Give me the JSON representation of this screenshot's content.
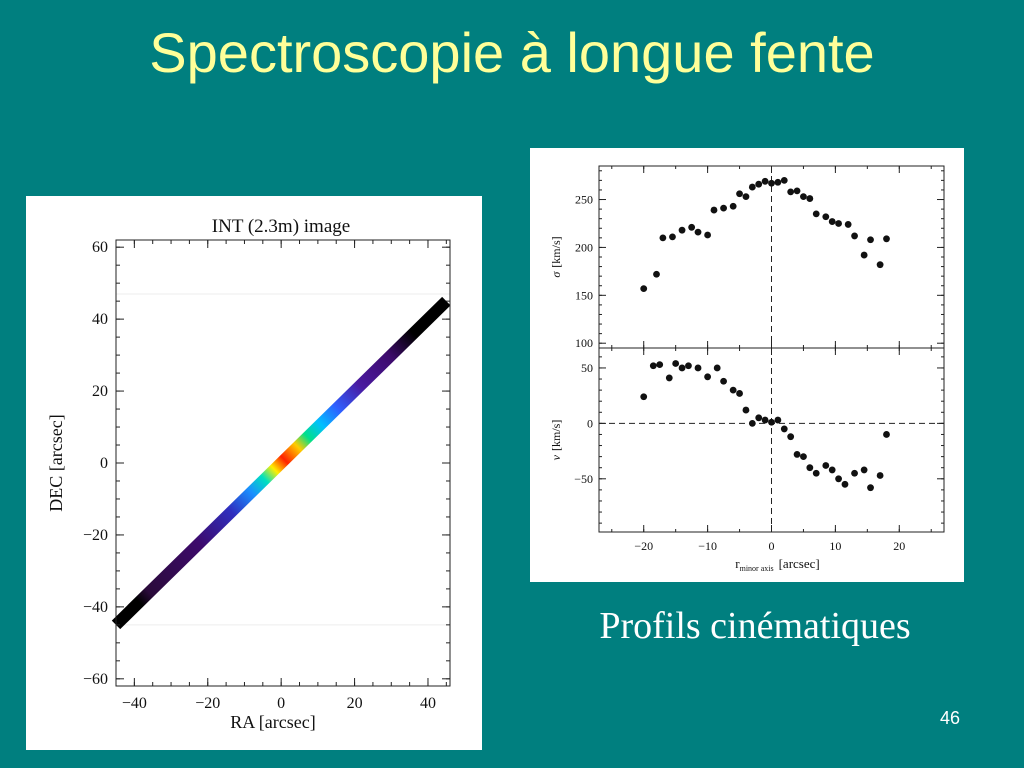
{
  "slide": {
    "title": "Spectroscopie à longue fente",
    "caption": "Profils cinématiques",
    "page_number": "46"
  },
  "colors": {
    "background": "#007F7F",
    "title": "#FFFF99",
    "caption": "#FFFFFF"
  },
  "chart_data": [
    {
      "type": "image",
      "title": "INT (2.3m) image",
      "xlabel": "RA [arcsec]",
      "ylabel": "DEC [arcsec]",
      "xlim": [
        -45,
        46
      ],
      "ylim": [
        -62,
        62
      ],
      "xticks": [
        "−40",
        "−20",
        "0",
        "20",
        "40"
      ],
      "xtick_values": [
        -40,
        -20,
        0,
        20,
        40
      ],
      "yticks": [
        "60",
        "40",
        "20",
        "0",
        "−20",
        "−40",
        "−60"
      ],
      "ytick_values": [
        60,
        40,
        20,
        0,
        -20,
        -40,
        -60
      ],
      "slit": {
        "from": [
          -45,
          -45
        ],
        "to": [
          45,
          45
        ]
      },
      "colormap_stops": [
        {
          "pos": 0.0,
          "color": "#000000"
        },
        {
          "pos": 0.07,
          "color": "#000000"
        },
        {
          "pos": 0.1,
          "color": "#2a0a3a"
        },
        {
          "pos": 0.25,
          "color": "#3d0a6b"
        },
        {
          "pos": 0.35,
          "color": "#2f2fbf"
        },
        {
          "pos": 0.41,
          "color": "#1a8fff"
        },
        {
          "pos": 0.45,
          "color": "#00e0c0"
        },
        {
          "pos": 0.48,
          "color": "#ffee00"
        },
        {
          "pos": 0.51,
          "color": "#ff2200"
        },
        {
          "pos": 0.55,
          "color": "#ffcc00"
        },
        {
          "pos": 0.58,
          "color": "#00e08a"
        },
        {
          "pos": 0.62,
          "color": "#00c0ff"
        },
        {
          "pos": 0.67,
          "color": "#2f5fff"
        },
        {
          "pos": 0.74,
          "color": "#4a1aa0"
        },
        {
          "pos": 0.83,
          "color": "#3d0a6b"
        },
        {
          "pos": 0.9,
          "color": "#000000"
        },
        {
          "pos": 1.0,
          "color": "#000000"
        }
      ]
    },
    {
      "type": "scatter",
      "title": "",
      "xlabel": "r",
      "xlabel_sub": "minor axis",
      "xlabel_unit": "[arcsec]",
      "xlim": [
        -27,
        27
      ],
      "xticks": [
        "−20",
        "−10",
        "0",
        "10",
        "20"
      ],
      "xtick_values": [
        -20,
        -10,
        0,
        10,
        20
      ],
      "panels": [
        {
          "ylabel_symbol": "σ",
          "ylabel_unit": "[km/s]",
          "ylim": [
            95,
            285
          ],
          "yticks": [
            "100",
            "150",
            "200",
            "250"
          ],
          "ytick_values": [
            100,
            150,
            200,
            250
          ],
          "hline": null,
          "x": [
            -20,
            -18,
            -17,
            -15.5,
            -14,
            -12.5,
            -11.5,
            -10,
            -9,
            -7.5,
            -6,
            -5,
            -4,
            -3,
            -2,
            -1,
            0,
            1,
            2,
            3,
            4,
            5,
            6,
            7,
            8.5,
            9.5,
            10.5,
            12,
            13,
            14.5,
            15.5,
            17,
            18
          ],
          "y": [
            157,
            172,
            210,
            211,
            218,
            221,
            216,
            213,
            239,
            241,
            243,
            256,
            253,
            263,
            266,
            269,
            267,
            268,
            270,
            258,
            259,
            253,
            251,
            235,
            232,
            227,
            225,
            224,
            212,
            192,
            208,
            182,
            209
          ]
        },
        {
          "ylabel_symbol": "v",
          "ylabel_unit": "[km/s]",
          "ylim": [
            -98,
            68
          ],
          "yticks": [
            "50",
            "0",
            "−50"
          ],
          "ytick_values": [
            50,
            0,
            -50
          ],
          "hline": 0,
          "x": [
            -20,
            -18.5,
            -17.5,
            -16,
            -15,
            -14,
            -13,
            -11.5,
            -10,
            -8.5,
            -7.5,
            -6,
            -5,
            -4,
            -3,
            -2,
            -1,
            0,
            1,
            2,
            3,
            4,
            5,
            6,
            7,
            8.5,
            9.5,
            10.5,
            11.5,
            13,
            14.5,
            15.5,
            17,
            18
          ],
          "y": [
            24,
            52,
            53,
            41,
            54,
            50,
            52,
            50,
            42,
            50,
            38,
            30,
            27,
            12,
            0,
            5,
            3,
            1,
            3,
            -5,
            -12,
            -28,
            -30,
            -40,
            -45,
            -38,
            -42,
            -50,
            -55,
            -45,
            -42,
            -58,
            -47,
            -10
          ]
        }
      ]
    }
  ]
}
